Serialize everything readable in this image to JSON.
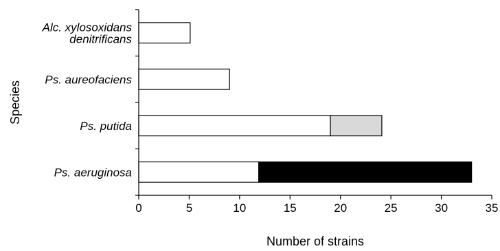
{
  "chart_data": {
    "type": "bar",
    "orientation": "horizontal",
    "stacked": true,
    "categories": [
      [
        "Alc. xylosoxidans",
        "denitrificans"
      ],
      [
        "Ps. aureofaciens"
      ],
      [
        "Ps. putida"
      ],
      [
        "Ps. aeruginosa"
      ]
    ],
    "series": [
      {
        "values": [
          5.1,
          9.0,
          19.0,
          11.9
        ],
        "color": "#ffffff"
      },
      {
        "values": [
          0,
          0,
          5.1,
          0
        ],
        "color": "#d9d9d9"
      },
      {
        "values": [
          0,
          0,
          0,
          21.1
        ],
        "color": "#000000"
      }
    ],
    "xlabel": "Number of strains",
    "ylabel": "Species",
    "xlim": [
      0,
      35
    ],
    "xticks": [
      "0",
      "5",
      "10",
      "15",
      "20",
      "25",
      "30",
      "35"
    ],
    "grid": false
  }
}
